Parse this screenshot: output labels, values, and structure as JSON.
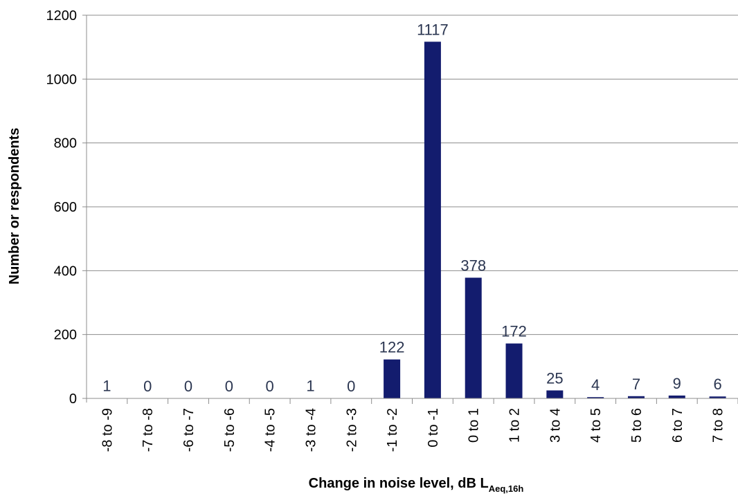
{
  "chart_data": {
    "type": "bar",
    "categories": [
      "-8 to -9",
      "-7 to -8",
      "-6 to -7",
      "-5 to -6",
      "-4 to -5",
      "-3 to -4",
      "-2 to -3",
      "-1 to -2",
      "0 to -1",
      "0 to 1",
      "1 to 2",
      "3 to 4",
      "4 to 5",
      "5 to 6",
      "6 to 7",
      "7 to 8"
    ],
    "values": [
      1,
      0,
      0,
      0,
      0,
      1,
      0,
      122,
      1117,
      378,
      172,
      25,
      4,
      7,
      9,
      6
    ],
    "data_labels": [
      "1",
      "0",
      "0",
      "0",
      "0",
      "1",
      "0",
      "122",
      "1117",
      "378",
      "172",
      "25",
      "4",
      "7",
      "9",
      "6"
    ],
    "ylim": [
      0,
      1200
    ],
    "yticks": [
      0,
      200,
      400,
      600,
      800,
      1000,
      1200
    ],
    "ylabel": "Number or respondents",
    "xlabel_main": "Change in noise level, dB L",
    "xlabel_subscript": "Aeq,16h",
    "grid": true,
    "bar_color": "#131c6e",
    "grid_color": "#8c8c8c",
    "label_color": "#2a3550"
  }
}
